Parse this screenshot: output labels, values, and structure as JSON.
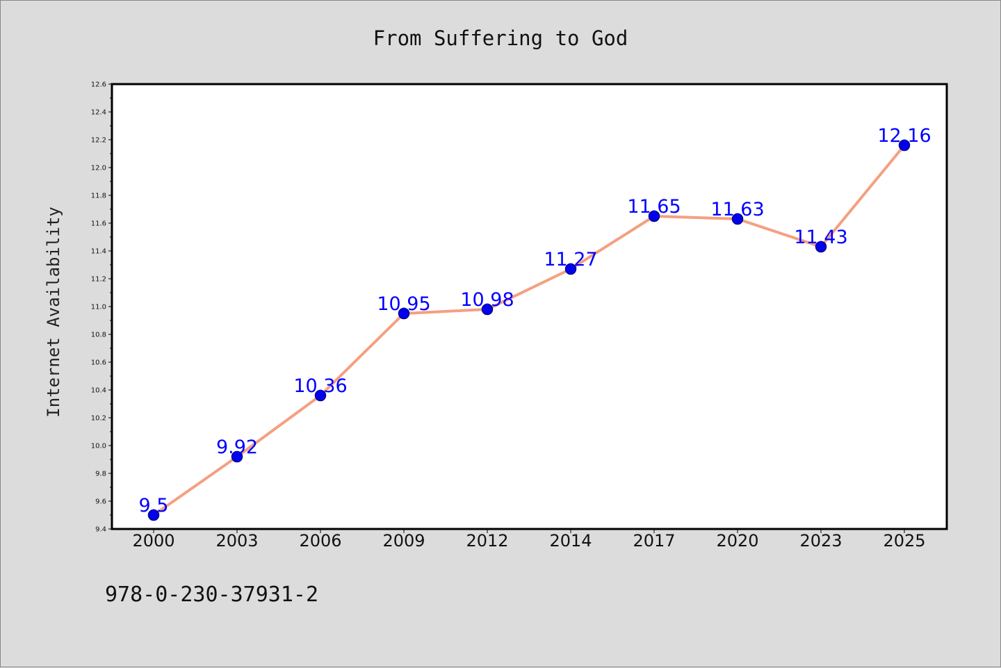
{
  "chart_data": {
    "type": "line",
    "title": "From Suffering to God",
    "xlabel": "",
    "ylabel": "Internet Availability",
    "categories": [
      "2000",
      "2003",
      "2006",
      "2009",
      "2012",
      "2014",
      "2017",
      "2020",
      "2023",
      "2025"
    ],
    "series": [
      {
        "values": [
          9.5,
          9.92,
          10.36,
          10.95,
          10.98,
          11.27,
          11.65,
          11.63,
          11.43,
          12.16
        ],
        "data_labels": [
          "9.5",
          "9.92",
          "10.36",
          "10.95",
          "10.98",
          "11.27",
          "11.65",
          "11.63",
          "11.43",
          "12.16"
        ]
      }
    ],
    "ylim": [
      9.4,
      12.6
    ],
    "yticks": [
      "9.4",
      "9.6",
      "9.8",
      "10.0",
      "10.2",
      "10.4",
      "10.6",
      "10.8",
      "11.0",
      "11.2",
      "11.4",
      "11.6",
      "11.8",
      "12.0",
      "12.2",
      "12.4",
      "12.6"
    ],
    "grid": false,
    "legend": "none"
  },
  "footer": {
    "isbn": "978-0-230-37931-2"
  },
  "colors": {
    "background": "#dcdcdc",
    "plot_background": "#ffffff",
    "line": "#f4a080",
    "marker_fill": "#0000ee",
    "marker_edge": "#00008b",
    "data_label": "#0000ff",
    "axis": "#000000"
  }
}
